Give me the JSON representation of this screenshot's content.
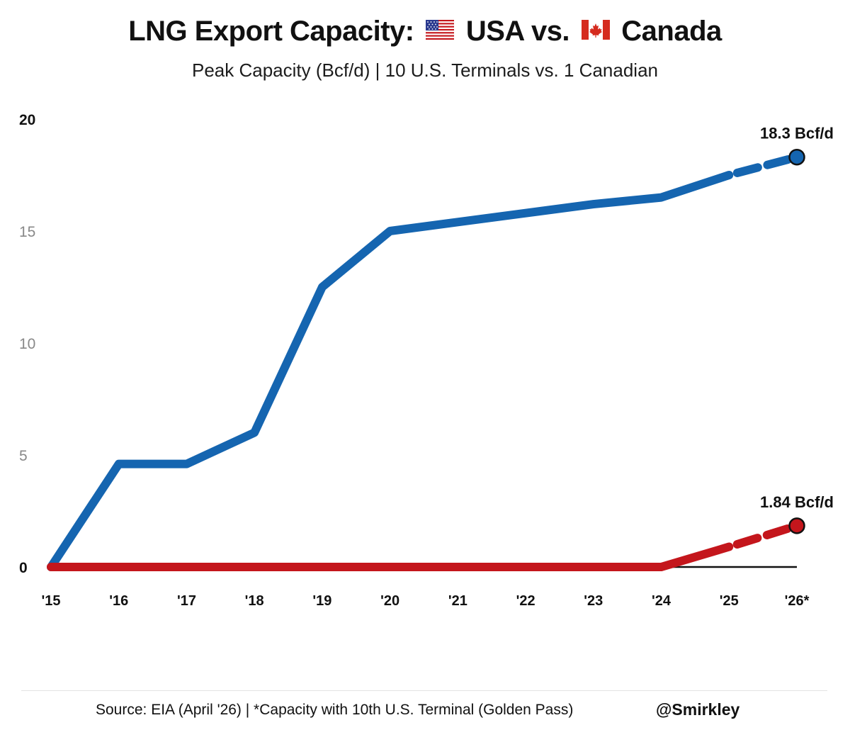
{
  "header": {
    "title_part1": "LNG Export Capacity:",
    "title_part2": "USA vs.",
    "title_part3": "Canada",
    "flag_usa_icon": "usa-flag-icon",
    "flag_canada_icon": "canada-flag-icon",
    "subtitle": "Peak Capacity (Bcf/d) | 10 U.S. Terminals vs. 1 Canadian"
  },
  "colors": {
    "usa": "#1565b0",
    "canada": "#c4161c",
    "axis": "#111111",
    "tick_muted": "#888888"
  },
  "chart_data": {
    "type": "line",
    "title": "LNG Export Capacity: USA vs. Canada",
    "subtitle": "Peak Capacity (Bcf/d) | 10 U.S. Terminals vs. 1 Canadian",
    "categories": [
      "'15",
      "'16",
      "'17",
      "'18",
      "'19",
      "'20",
      "'21",
      "'22",
      "'23",
      "'24",
      "'25",
      "'26*"
    ],
    "ylim": [
      0,
      20
    ],
    "yticks": [
      "0",
      "5",
      "10",
      "15",
      "20"
    ],
    "xlabel": "",
    "ylabel": "",
    "grid": false,
    "series": [
      {
        "name": "USA",
        "values": [
          0,
          4.6,
          4.6,
          6.0,
          12.5,
          15.0,
          15.4,
          15.8,
          16.2,
          16.5,
          17.5,
          18.3
        ],
        "projected_from_index": 10,
        "end_label": "18.3 Bcf/d"
      },
      {
        "name": "Canada",
        "values": [
          0,
          0,
          0,
          0,
          0,
          0,
          0,
          0,
          0,
          0,
          0.9,
          1.84
        ],
        "projected_from_index": 10,
        "end_label": "1.84 Bcf/d"
      }
    ]
  },
  "footer": {
    "source": "Source: EIA (April '26) | *Capacity with 10th U.S. Terminal (Golden Pass)",
    "handle": "@Smirkley"
  }
}
